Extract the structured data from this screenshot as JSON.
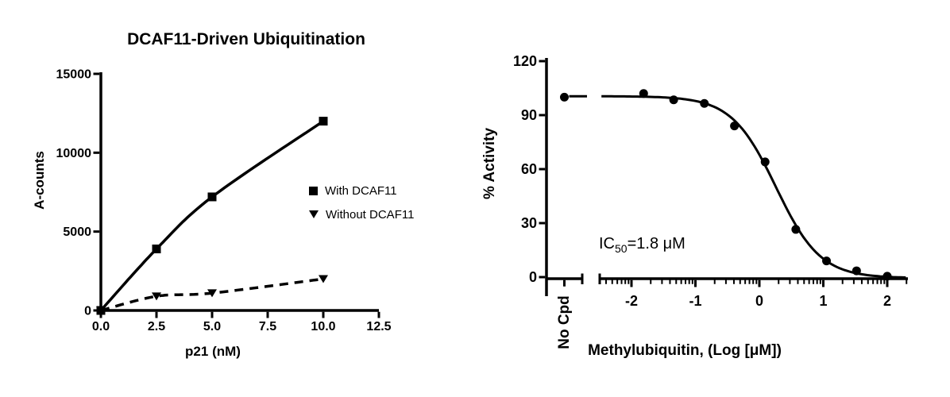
{
  "figure": {
    "background": "#ffffff",
    "ink_color": "#000000"
  },
  "chart_data": [
    {
      "type": "line",
      "title": "DCAF11-Driven Ubiquitination",
      "xlabel": "p21 (nM)",
      "ylabel": "A-counts",
      "xlim": [
        0,
        12.5
      ],
      "ylim": [
        0,
        15000
      ],
      "xticks": {
        "values": [
          0,
          2.5,
          5,
          7.5,
          10,
          12.5
        ],
        "labels": [
          "0.0",
          "2.5",
          "5.0",
          "7.5",
          "10.0",
          "12.5"
        ]
      },
      "yticks": {
        "values": [
          0,
          5000,
          10000,
          15000
        ],
        "labels": [
          "0",
          "5000",
          "10000",
          "15000"
        ]
      },
      "grid": false,
      "color": "#000000",
      "series": [
        {
          "name": "With DCAF11",
          "marker": "square",
          "line_style": "solid",
          "x": [
            0,
            2.5,
            5,
            10
          ],
          "y": [
            0,
            3900,
            7200,
            12000
          ]
        },
        {
          "name": "Without DCAF11",
          "marker": "triangle-down",
          "line_style": "dashed",
          "x": [
            0,
            2.5,
            5,
            10
          ],
          "y": [
            0,
            900,
            1100,
            2000
          ]
        }
      ],
      "legend_position": "right-center"
    },
    {
      "type": "scatter",
      "xlabel": "Methylubiquitin, (Log [μM])",
      "ylabel": "% Activity",
      "x_scale": "log10",
      "axis_break": true,
      "xlim_log": [
        -2.47,
        2.32
      ],
      "ylim": [
        0,
        120
      ],
      "xticks": {
        "values": [
          -2,
          -1,
          0,
          1,
          2
        ],
        "labels": [
          "-2",
          "-1",
          "0",
          "1",
          "2"
        ]
      },
      "yticks": {
        "values": [
          0,
          30,
          60,
          90,
          120
        ],
        "labels": [
          "0",
          "30",
          "60",
          "90",
          "120"
        ]
      },
      "grid": false,
      "color": "#000000",
      "no_cpd": {
        "label": "No Cpd",
        "value": 100
      },
      "points": {
        "x_log": [
          -1.81,
          -1.34,
          -0.86,
          -0.39,
          0.09,
          0.57,
          1.05,
          1.52,
          2.0
        ],
        "y": [
          102,
          98.5,
          96.5,
          84,
          64,
          26.5,
          9,
          3.5,
          0.5
        ]
      },
      "fit": {
        "model": "4PL sigmoidal dose-response",
        "top": 100.5,
        "bottom": -0.5,
        "log_ic50": 0.26,
        "hill_slope": -1.25
      },
      "annotation": {
        "prefix": "IC",
        "sub": "50",
        "rest": "=1.8 μM",
        "text": "IC50=1.8 μM"
      }
    }
  ]
}
